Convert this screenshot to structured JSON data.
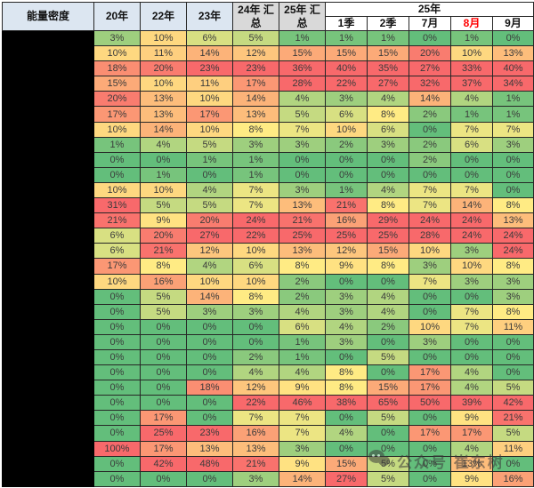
{
  "header": {
    "row_label": "能量密度",
    "col_20": "20年",
    "col_22": "22年",
    "col_23": "23年",
    "col_24_sum": "24年 汇总",
    "col_25_sum": "25年 汇总",
    "group_25": "25年",
    "months": [
      "1季",
      "2季",
      "7月",
      "8月",
      "9月"
    ],
    "highlight_month_index": 3,
    "highlight_color": "#FF0000"
  },
  "row_labels_note": "row label column blacked out / redacted",
  "watermark": {
    "text": "公众号 崔东树",
    "icon": "wechat-icon"
  },
  "chart_data": {
    "type": "heatmap",
    "title": "能量密度",
    "unit": "%",
    "columns": [
      "20年",
      "22年",
      "23年",
      "24年 汇总",
      "25年 汇总",
      "1季",
      "2季",
      "7月",
      "8月",
      "9月"
    ],
    "column_group": {
      "label": "25年",
      "columns": [
        "1季",
        "2季",
        "7月",
        "8月",
        "9月"
      ]
    },
    "rows": [
      [
        3,
        10,
        6,
        5,
        1,
        1,
        1,
        0,
        1,
        0
      ],
      [
        10,
        11,
        14,
        12,
        15,
        15,
        15,
        20,
        10,
        13
      ],
      [
        18,
        20,
        23,
        23,
        36,
        40,
        35,
        27,
        33,
        40
      ],
      [
        15,
        10,
        11,
        17,
        28,
        22,
        27,
        32,
        37,
        34
      ],
      [
        20,
        13,
        10,
        14,
        4,
        3,
        4,
        14,
        4,
        1
      ],
      [
        17,
        13,
        17,
        13,
        5,
        6,
        8,
        2,
        1,
        1
      ],
      [
        10,
        14,
        10,
        8,
        7,
        10,
        6,
        0,
        7,
        7
      ],
      [
        1,
        4,
        5,
        3,
        3,
        2,
        3,
        2,
        6,
        3
      ],
      [
        0,
        0,
        1,
        1,
        0,
        0,
        0,
        2,
        0,
        0
      ],
      [
        0,
        1,
        0,
        1,
        0,
        0,
        0,
        0,
        0,
        0
      ],
      [
        10,
        10,
        4,
        7,
        3,
        1,
        4,
        7,
        7,
        0
      ],
      [
        31,
        5,
        5,
        7,
        13,
        21,
        8,
        7,
        14,
        8
      ],
      [
        21,
        9,
        20,
        24,
        21,
        16,
        29,
        24,
        24,
        13
      ],
      [
        6,
        20,
        27,
        22,
        25,
        25,
        25,
        28,
        24,
        24
      ],
      [
        6,
        21,
        12,
        10,
        13,
        12,
        15,
        10,
        3,
        24
      ],
      [
        17,
        8,
        4,
        6,
        8,
        9,
        8,
        3,
        10,
        8
      ],
      [
        10,
        16,
        10,
        10,
        2,
        0,
        0,
        7,
        3,
        3
      ],
      [
        0,
        5,
        14,
        8,
        2,
        3,
        4,
        0,
        0,
        3
      ],
      [
        0,
        5,
        3,
        3,
        4,
        3,
        4,
        0,
        7,
        8
      ],
      [
        0,
        0,
        0,
        0,
        6,
        4,
        2,
        10,
        7,
        11
      ],
      [
        0,
        0,
        0,
        0,
        1,
        3,
        0,
        3,
        0,
        0
      ],
      [
        0,
        0,
        0,
        2,
        1,
        0,
        5,
        0,
        0,
        0
      ],
      [
        0,
        0,
        0,
        4,
        4,
        8,
        0,
        17,
        4,
        0
      ],
      [
        0,
        0,
        18,
        12,
        9,
        8,
        15,
        17,
        4,
        5
      ],
      [
        0,
        0,
        0,
        22,
        46,
        38,
        65,
        50,
        39,
        42
      ],
      [
        0,
        17,
        0,
        7,
        7,
        0,
        5,
        0,
        9,
        21
      ],
      [
        0,
        25,
        23,
        16,
        7,
        4,
        0,
        17,
        17,
        5
      ],
      [
        100,
        17,
        13,
        13,
        3,
        0,
        0,
        0,
        4,
        11
      ],
      [
        0,
        42,
        48,
        21,
        9,
        15,
        5,
        0,
        13,
        0
      ],
      [
        0,
        0,
        0,
        3,
        14,
        27,
        5,
        0,
        9,
        16
      ]
    ],
    "color_scale": {
      "low_color": "#63BE7B",
      "mid_color": "#FFEB84",
      "high_color": "#F8696B",
      "low_value": 0,
      "mid_value": 8,
      "high_value": 22
    }
  }
}
